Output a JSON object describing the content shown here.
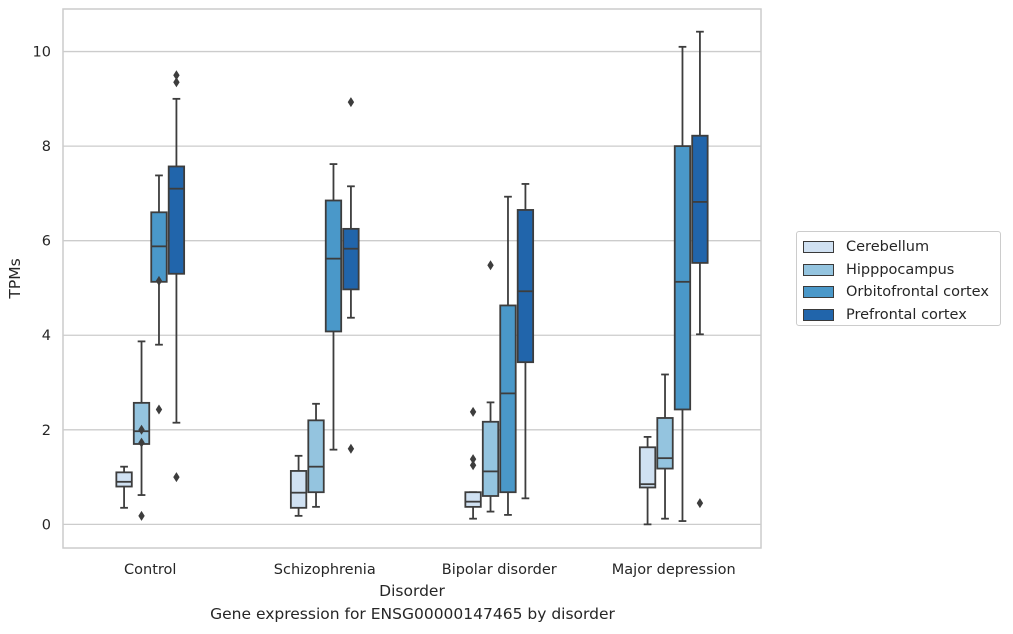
{
  "chart_data": {
    "type": "boxplot",
    "title": "",
    "caption": "Gene expression for ENSG00000147465 by disorder",
    "xlabel": "Disorder",
    "ylabel": "TPMs",
    "ylim": [
      -0.5,
      10.9
    ],
    "yticks": [
      0,
      2,
      4,
      6,
      8,
      10
    ],
    "grid": "horizontal",
    "legend_position": "right, outside plot",
    "categories": [
      "Control",
      "Schizophrenia",
      "Bipolar disorder",
      "Major depression"
    ],
    "series": [
      {
        "name": "Cerebellum",
        "color": "#d0e1f2",
        "boxes": [
          {
            "whislo": 0.35,
            "q1": 0.8,
            "med": 0.9,
            "q3": 1.1,
            "whishi": 1.22,
            "fliers": []
          },
          {
            "whislo": 0.18,
            "q1": 0.35,
            "med": 0.67,
            "q3": 1.13,
            "whishi": 1.45,
            "fliers": []
          },
          {
            "whislo": 0.12,
            "q1": 0.37,
            "med": 0.48,
            "q3": 0.68,
            "whishi": 0.68,
            "fliers": [
              1.25,
              1.38,
              2.38
            ]
          },
          {
            "whislo": 0.0,
            "q1": 0.78,
            "med": 0.85,
            "q3": 1.63,
            "whishi": 1.85,
            "fliers": []
          }
        ]
      },
      {
        "name": "Hipppocampus",
        "color": "#94c4df",
        "boxes": [
          {
            "whislo": 0.62,
            "q1": 1.7,
            "med": 1.97,
            "q3": 2.57,
            "whishi": 3.87,
            "fliers": [
              0.18,
              1.73,
              2.0
            ]
          },
          {
            "whislo": 0.37,
            "q1": 0.68,
            "med": 1.22,
            "q3": 2.2,
            "whishi": 2.55,
            "fliers": []
          },
          {
            "whislo": 0.27,
            "q1": 0.6,
            "med": 1.12,
            "q3": 2.17,
            "whishi": 2.58,
            "fliers": [
              5.48
            ]
          },
          {
            "whislo": 0.12,
            "q1": 1.18,
            "med": 1.4,
            "q3": 2.25,
            "whishi": 3.17,
            "fliers": []
          }
        ]
      },
      {
        "name": "Orbitofrontal cortex",
        "color": "#4a98c9",
        "boxes": [
          {
            "whislo": 3.8,
            "q1": 5.13,
            "med": 5.88,
            "q3": 6.6,
            "whishi": 7.38,
            "fliers": [
              2.43,
              5.15
            ]
          },
          {
            "whislo": 1.58,
            "q1": 4.08,
            "med": 5.62,
            "q3": 6.85,
            "whishi": 7.62,
            "fliers": []
          },
          {
            "whislo": 0.2,
            "q1": 0.68,
            "med": 2.77,
            "q3": 4.63,
            "whishi": 6.93,
            "fliers": []
          },
          {
            "whislo": 0.07,
            "q1": 2.43,
            "med": 5.13,
            "q3": 8.0,
            "whishi": 10.1,
            "fliers": []
          }
        ]
      },
      {
        "name": "Prefrontal cortex",
        "color": "#2165ab",
        "boxes": [
          {
            "whislo": 2.15,
            "q1": 5.3,
            "med": 7.1,
            "q3": 7.57,
            "whishi": 9.0,
            "fliers": [
              1.0,
              9.35,
              9.5
            ]
          },
          {
            "whislo": 4.37,
            "q1": 4.97,
            "med": 5.83,
            "q3": 6.25,
            "whishi": 7.15,
            "fliers": [
              1.6,
              8.93
            ]
          },
          {
            "whislo": 0.55,
            "q1": 3.43,
            "med": 4.93,
            "q3": 6.65,
            "whishi": 7.2,
            "fliers": []
          },
          {
            "whislo": 4.02,
            "q1": 5.53,
            "med": 6.82,
            "q3": 8.22,
            "whishi": 10.42,
            "fliers": [
              0.45
            ]
          }
        ]
      }
    ]
  }
}
